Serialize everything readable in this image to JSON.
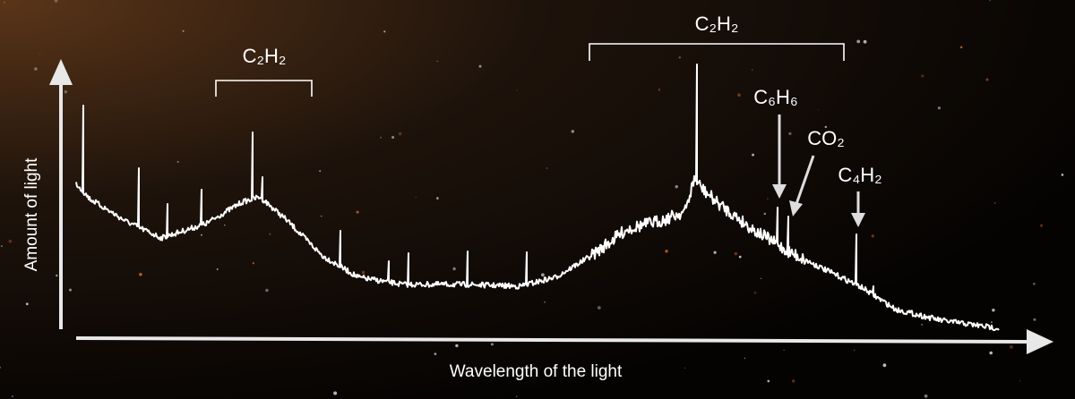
{
  "axes": {
    "y_label": "Amount of light",
    "x_label": "Wavelength of the light"
  },
  "annotations": [
    {
      "label": "C₂H₂"
    },
    {
      "label": "C₂H₂"
    },
    {
      "label": "C₆H₆"
    },
    {
      "label": "CO₂"
    },
    {
      "label": "C₄H₂"
    }
  ]
}
